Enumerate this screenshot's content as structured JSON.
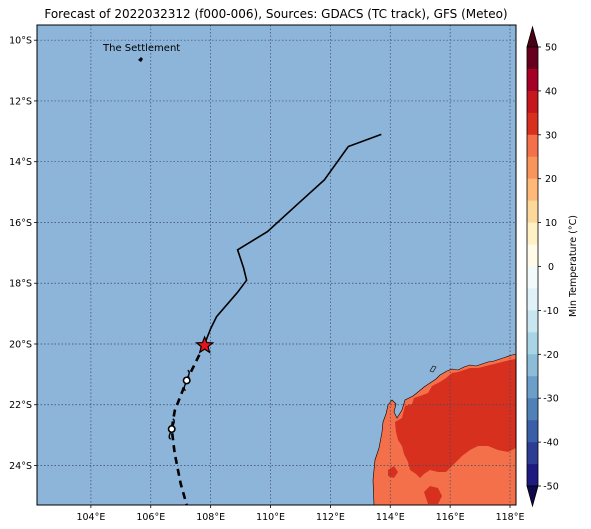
{
  "title": "Forecast of 2022032312 (f000-006), Sources: GDACS (TC track), GFS (Meteo)",
  "colors": {
    "ocean": "#8db4d9",
    "grid": "#3a4a66",
    "track": "#000000",
    "storm_marker": "#e8141b",
    "land_hot": "#d7301f",
    "land_warm": "#f4704a"
  },
  "map": {
    "lon_range": [
      102.2,
      118.2
    ],
    "lat_range": [
      -25.3,
      -9.5
    ],
    "lon_ticks": [
      {
        "value": 104,
        "label": "104°E"
      },
      {
        "value": 106,
        "label": "106°E"
      },
      {
        "value": 108,
        "label": "108°E"
      },
      {
        "value": 110,
        "label": "110°E"
      },
      {
        "value": 112,
        "label": "112°E"
      },
      {
        "value": 114,
        "label": "114°E"
      },
      {
        "value": 116,
        "label": "116°E"
      },
      {
        "value": 118,
        "label": "118°E"
      }
    ],
    "lat_ticks": [
      {
        "value": -10,
        "label": "10°S"
      },
      {
        "value": -12,
        "label": "12°S"
      },
      {
        "value": -14,
        "label": "14°S"
      },
      {
        "value": -16,
        "label": "16°S"
      },
      {
        "value": -18,
        "label": "18°S"
      },
      {
        "value": -20,
        "label": "20°S"
      },
      {
        "value": -22,
        "label": "22°S"
      },
      {
        "value": -24,
        "label": "24°S"
      }
    ],
    "place_label": "The Settlement",
    "place_location": {
      "lon": 105.67,
      "lat": -10.43
    },
    "past_track": [
      {
        "lon": 113.7,
        "lat": -13.1
      },
      {
        "lon": 112.6,
        "lat": -13.5
      },
      {
        "lon": 111.8,
        "lat": -14.6
      },
      {
        "lon": 110.9,
        "lat": -15.4
      },
      {
        "lon": 109.9,
        "lat": -16.3
      },
      {
        "lon": 109.4,
        "lat": -16.6
      },
      {
        "lon": 108.9,
        "lat": -16.9
      },
      {
        "lon": 109.1,
        "lat": -17.5
      },
      {
        "lon": 109.2,
        "lat": -17.9
      },
      {
        "lon": 108.9,
        "lat": -18.3
      },
      {
        "lon": 108.2,
        "lat": -19.1
      },
      {
        "lon": 108.0,
        "lat": -19.5
      },
      {
        "lon": 107.8,
        "lat": -20.0
      }
    ],
    "forecast_track": [
      {
        "lon": 107.8,
        "lat": -20.0
      },
      {
        "lon": 107.5,
        "lat": -20.6
      },
      {
        "lon": 107.2,
        "lat": -21.2
      },
      {
        "lon": 107.0,
        "lat": -21.7
      },
      {
        "lon": 106.8,
        "lat": -22.2
      },
      {
        "lon": 106.7,
        "lat": -22.8
      },
      {
        "lon": 106.8,
        "lat": -23.6
      },
      {
        "lon": 107.0,
        "lat": -24.6
      },
      {
        "lon": 107.2,
        "lat": -25.3
      }
    ],
    "storm_position": {
      "lon": 107.8,
      "lat": -20.05
    },
    "cyclone_symbols": [
      {
        "lon": 107.2,
        "lat": -21.2
      },
      {
        "lon": 106.7,
        "lat": -22.8
      }
    ]
  },
  "colorbar": {
    "label": "Min Temperature (°C)",
    "range": [
      -50,
      50
    ],
    "ticks": [
      50,
      40,
      30,
      20,
      10,
      0,
      -10,
      -20,
      -30,
      -40,
      -50
    ],
    "bands": [
      {
        "from": 45,
        "to": 50,
        "color": "#67001f"
      },
      {
        "from": 40,
        "to": 45,
        "color": "#a50026"
      },
      {
        "from": 35,
        "to": 40,
        "color": "#c4181c"
      },
      {
        "from": 30,
        "to": 35,
        "color": "#d7301f"
      },
      {
        "from": 25,
        "to": 30,
        "color": "#f4704a"
      },
      {
        "from": 20,
        "to": 25,
        "color": "#f8955d"
      },
      {
        "from": 15,
        "to": 20,
        "color": "#fdb87a"
      },
      {
        "from": 10,
        "to": 15,
        "color": "#fdd89b"
      },
      {
        "from": 5,
        "to": 10,
        "color": "#fff1c6"
      },
      {
        "from": 0,
        "to": 5,
        "color": "#fffbe8"
      },
      {
        "from": -5,
        "to": 0,
        "color": "#f3fafc"
      },
      {
        "from": -10,
        "to": -5,
        "color": "#e0f2f7"
      },
      {
        "from": -15,
        "to": -10,
        "color": "#c8e6f0"
      },
      {
        "from": -20,
        "to": -15,
        "color": "#a9d4e6"
      },
      {
        "from": -25,
        "to": -20,
        "color": "#8dbcd9"
      },
      {
        "from": -30,
        "to": -25,
        "color": "#6b9fc9"
      },
      {
        "from": -35,
        "to": -30,
        "color": "#4f80b8"
      },
      {
        "from": -40,
        "to": -35,
        "color": "#3b5fa6"
      },
      {
        "from": -45,
        "to": -40,
        "color": "#2d3d94"
      },
      {
        "from": -50,
        "to": -45,
        "color": "#1d1a80"
      }
    ],
    "extend_max_color": "#4a0015",
    "extend_min_color": "#0e0a4a"
  }
}
